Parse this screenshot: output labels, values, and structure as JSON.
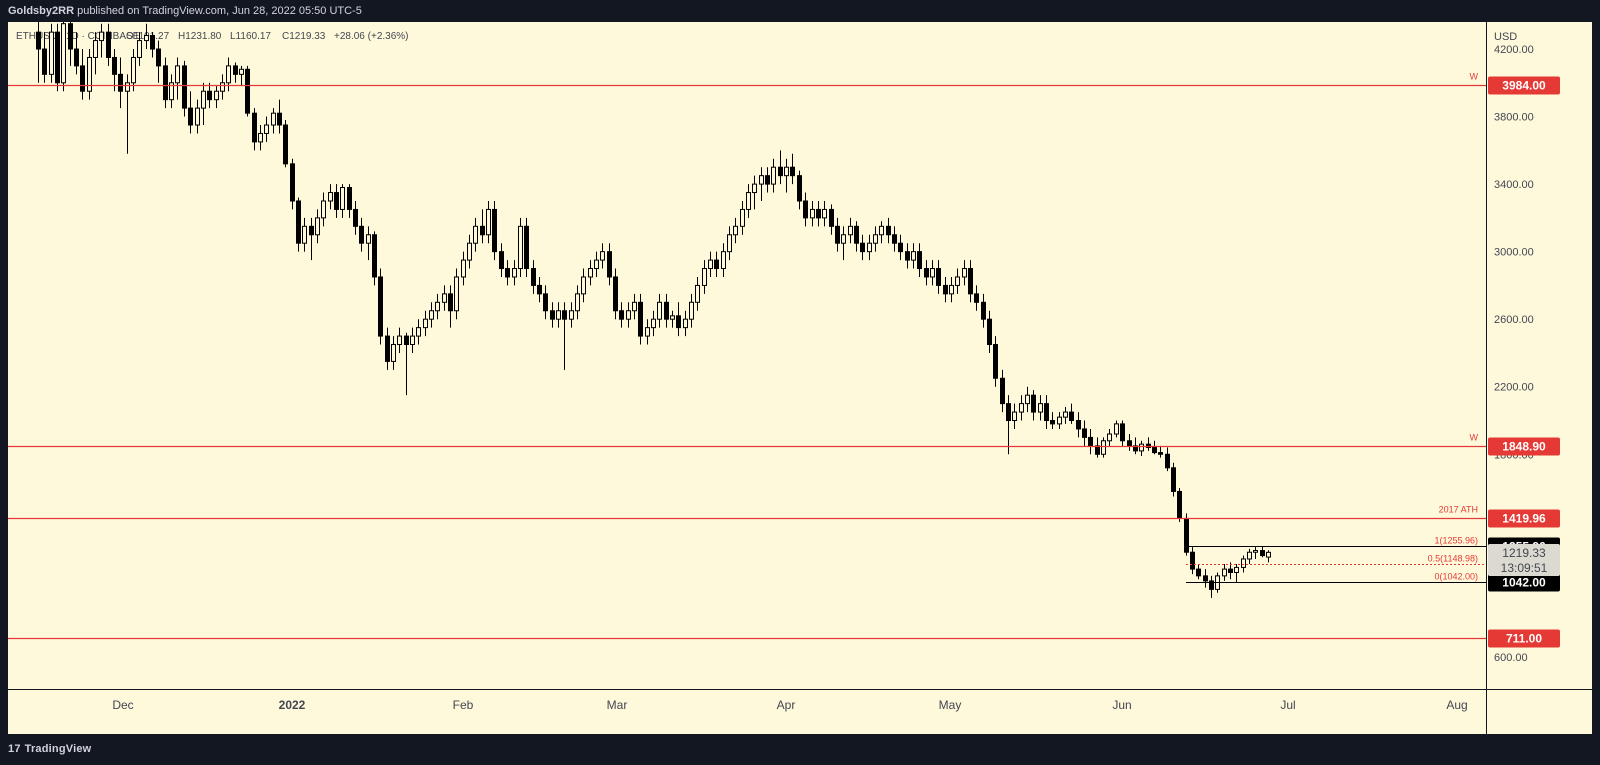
{
  "header": {
    "author": "Goldsby2RR",
    "published_text": "published on TradingView.com, Jun 28, 2022 05:50 UTC-5"
  },
  "footer": {
    "brand": "TradingView"
  },
  "legend": {
    "symbol": "ETHUSD",
    "exchange": "COINBASE",
    "open": "O1191.27",
    "high": "H1231.80",
    "low": "L1160.17",
    "close": "C1219.33",
    "change": "+28.06 (+2.36%)"
  },
  "colors": {
    "background": "#fff9dc",
    "frame": "#131722",
    "level_line": "#e53935",
    "candle": "#000000",
    "axis_text": "#434651"
  },
  "chart_data": {
    "type": "candlestick",
    "symbol": "ETHUSD",
    "currency": "USD",
    "ylim": [
      410,
      4360
    ],
    "x_ticks": [
      "Dec",
      "2022",
      "Feb",
      "Mar",
      "Apr",
      "May",
      "Jun",
      "Jul",
      "Aug"
    ],
    "y_ticks": [
      4200,
      3800,
      3400,
      3000,
      2600,
      2200,
      1800,
      600
    ],
    "horizontal_levels": [
      {
        "price": 3984.0,
        "label": "3984.00",
        "tag": "W"
      },
      {
        "price": 1848.9,
        "label": "1848.90",
        "tag": "W"
      },
      {
        "price": 1419.96,
        "label": "1419.96",
        "tag": "2017 ATH"
      },
      {
        "price": 711.0,
        "label": "711.00",
        "tag": ""
      }
    ],
    "fibonacci": [
      {
        "ratio": "1",
        "price": 1255.96,
        "label": "1(1255.96)",
        "badge": "1255.96"
      },
      {
        "ratio": "0.5",
        "price": 1148.98,
        "label": "0.5(1148.98)",
        "badge": ""
      },
      {
        "ratio": "0",
        "price": 1042.0,
        "label": "0(1042.00)",
        "badge": "1042.00"
      }
    ],
    "last_price": {
      "price": 1219.33,
      "label": "1219.33",
      "countdown": "13:09:51"
    },
    "candles": [
      [
        4300,
        4400,
        4000,
        4200
      ],
      [
        4200,
        4300,
        4000,
        4050
      ],
      [
        4050,
        4350,
        4000,
        4300
      ],
      [
        4300,
        4350,
        3950,
        4000
      ],
      [
        4000,
        4400,
        3950,
        4350
      ],
      [
        4350,
        4400,
        4100,
        4200
      ],
      [
        4200,
        4300,
        4050,
        4100
      ],
      [
        4100,
        4200,
        3900,
        3950
      ],
      [
        3950,
        4200,
        3900,
        4150
      ],
      [
        4150,
        4300,
        4050,
        4250
      ],
      [
        4250,
        4350,
        4150,
        4300
      ],
      [
        4300,
        4350,
        4100,
        4150
      ],
      [
        4150,
        4200,
        3950,
        4050
      ],
      [
        4050,
        4150,
        3850,
        3950
      ],
      [
        3950,
        4050,
        3580,
        4000
      ],
      [
        4000,
        4200,
        3950,
        4150
      ],
      [
        4150,
        4300,
        4100,
        4250
      ],
      [
        4250,
        4350,
        4200,
        4280
      ],
      [
        4280,
        4300,
        4150,
        4200
      ],
      [
        4200,
        4250,
        4000,
        4100
      ],
      [
        4100,
        4150,
        3850,
        3900
      ],
      [
        3900,
        4050,
        3850,
        4000
      ],
      [
        4000,
        4150,
        3900,
        4100
      ],
      [
        4100,
        4130,
        3800,
        3850
      ],
      [
        3850,
        3950,
        3700,
        3750
      ],
      [
        3750,
        3900,
        3700,
        3850
      ],
      [
        3850,
        4000,
        3750,
        3950
      ],
      [
        3950,
        4000,
        3850,
        3900
      ],
      [
        3900,
        3980,
        3850,
        3950
      ],
      [
        3950,
        4050,
        3900,
        4000
      ],
      [
        4000,
        4150,
        3950,
        4100
      ],
      [
        4100,
        4120,
        4000,
        4050
      ],
      [
        4050,
        4100,
        3980,
        4080
      ],
      [
        4080,
        4100,
        3800,
        3820
      ],
      [
        3820,
        3850,
        3600,
        3650
      ],
      [
        3650,
        3750,
        3600,
        3700
      ],
      [
        3700,
        3800,
        3650,
        3750
      ],
      [
        3750,
        3850,
        3700,
        3820
      ],
      [
        3820,
        3900,
        3700,
        3750
      ],
      [
        3750,
        3780,
        3500,
        3520
      ],
      [
        3520,
        3550,
        3250,
        3300
      ],
      [
        3300,
        3320,
        3000,
        3050
      ],
      [
        3050,
        3200,
        3000,
        3150
      ],
      [
        3150,
        3200,
        2950,
        3100
      ],
      [
        3100,
        3250,
        3050,
        3200
      ],
      [
        3200,
        3350,
        3150,
        3300
      ],
      [
        3300,
        3400,
        3250,
        3350
      ],
      [
        3350,
        3400,
        3200,
        3250
      ],
      [
        3250,
        3400,
        3200,
        3380
      ],
      [
        3380,
        3400,
        3200,
        3250
      ],
      [
        3250,
        3300,
        3100,
        3150
      ],
      [
        3150,
        3200,
        3000,
        3050
      ],
      [
        3050,
        3150,
        2950,
        3100
      ],
      [
        3100,
        3120,
        2800,
        2850
      ],
      [
        2850,
        2900,
        2450,
        2500
      ],
      [
        2500,
        2550,
        2300,
        2350
      ],
      [
        2350,
        2500,
        2300,
        2450
      ],
      [
        2450,
        2550,
        2400,
        2500
      ],
      [
        2500,
        2520,
        2150,
        2450
      ],
      [
        2450,
        2550,
        2400,
        2500
      ],
      [
        2500,
        2600,
        2450,
        2550
      ],
      [
        2550,
        2650,
        2500,
        2600
      ],
      [
        2600,
        2700,
        2550,
        2650
      ],
      [
        2650,
        2750,
        2600,
        2700
      ],
      [
        2700,
        2800,
        2650,
        2750
      ],
      [
        2750,
        2800,
        2550,
        2650
      ],
      [
        2650,
        2900,
        2600,
        2850
      ],
      [
        2850,
        3000,
        2800,
        2950
      ],
      [
        2950,
        3100,
        2900,
        3050
      ],
      [
        3050,
        3200,
        3000,
        3150
      ],
      [
        3150,
        3250,
        3050,
        3100
      ],
      [
        3100,
        3300,
        3050,
        3250
      ],
      [
        3250,
        3300,
        2950,
        3000
      ],
      [
        3000,
        3050,
        2850,
        2900
      ],
      [
        2900,
        2950,
        2800,
        2850
      ],
      [
        2850,
        2950,
        2800,
        2900
      ],
      [
        2900,
        3200,
        2850,
        3150
      ],
      [
        3150,
        3200,
        2850,
        2900
      ],
      [
        2900,
        2950,
        2750,
        2800
      ],
      [
        2800,
        2850,
        2700,
        2750
      ],
      [
        2750,
        2800,
        2600,
        2650
      ],
      [
        2650,
        2700,
        2550,
        2600
      ],
      [
        2600,
        2700,
        2550,
        2650
      ],
      [
        2650,
        2700,
        2300,
        2600
      ],
      [
        2600,
        2700,
        2550,
        2650
      ],
      [
        2650,
        2800,
        2600,
        2750
      ],
      [
        2750,
        2900,
        2700,
        2850
      ],
      [
        2850,
        2950,
        2800,
        2900
      ],
      [
        2900,
        3000,
        2850,
        2950
      ],
      [
        2950,
        3050,
        2900,
        3000
      ],
      [
        3000,
        3050,
        2800,
        2850
      ],
      [
        2850,
        2900,
        2600,
        2650
      ],
      [
        2650,
        2700,
        2550,
        2600
      ],
      [
        2600,
        2700,
        2550,
        2650
      ],
      [
        2650,
        2750,
        2600,
        2700
      ],
      [
        2700,
        2750,
        2450,
        2500
      ],
      [
        2500,
        2600,
        2450,
        2550
      ],
      [
        2550,
        2650,
        2500,
        2600
      ],
      [
        2600,
        2750,
        2550,
        2700
      ],
      [
        2700,
        2750,
        2550,
        2600
      ],
      [
        2600,
        2650,
        2550,
        2620
      ],
      [
        2620,
        2700,
        2500,
        2550
      ],
      [
        2550,
        2650,
        2500,
        2600
      ],
      [
        2600,
        2750,
        2550,
        2700
      ],
      [
        2700,
        2850,
        2650,
        2800
      ],
      [
        2800,
        2950,
        2750,
        2900
      ],
      [
        2900,
        3000,
        2850,
        2950
      ],
      [
        2950,
        3000,
        2850,
        2900
      ],
      [
        2900,
        3050,
        2850,
        3000
      ],
      [
        3000,
        3150,
        2950,
        3100
      ],
      [
        3100,
        3200,
        3050,
        3150
      ],
      [
        3150,
        3300,
        3100,
        3250
      ],
      [
        3250,
        3400,
        3200,
        3350
      ],
      [
        3350,
        3450,
        3250,
        3400
      ],
      [
        3400,
        3500,
        3300,
        3450
      ],
      [
        3450,
        3500,
        3350,
        3400
      ],
      [
        3400,
        3550,
        3350,
        3500
      ],
      [
        3500,
        3600,
        3400,
        3450
      ],
      [
        3450,
        3550,
        3350,
        3500
      ],
      [
        3500,
        3580,
        3400,
        3450
      ],
      [
        3450,
        3480,
        3250,
        3300
      ],
      [
        3300,
        3350,
        3150,
        3200
      ],
      [
        3200,
        3300,
        3150,
        3250
      ],
      [
        3250,
        3300,
        3150,
        3200
      ],
      [
        3200,
        3300,
        3150,
        3250
      ],
      [
        3250,
        3280,
        3100,
        3150
      ],
      [
        3150,
        3200,
        3000,
        3050
      ],
      [
        3050,
        3150,
        2950,
        3100
      ],
      [
        3100,
        3200,
        3050,
        3150
      ],
      [
        3150,
        3180,
        3000,
        3050
      ],
      [
        3050,
        3100,
        2950,
        3000
      ],
      [
        3000,
        3100,
        2950,
        3050
      ],
      [
        3050,
        3150,
        3000,
        3100
      ],
      [
        3100,
        3180,
        3050,
        3150
      ],
      [
        3150,
        3200,
        3050,
        3100
      ],
      [
        3100,
        3150,
        3000,
        3050
      ],
      [
        3050,
        3100,
        2950,
        3000
      ],
      [
        3000,
        3050,
        2900,
        2950
      ],
      [
        2950,
        3050,
        2900,
        3000
      ],
      [
        3000,
        3050,
        2850,
        2900
      ],
      [
        2900,
        2950,
        2800,
        2850
      ],
      [
        2850,
        2950,
        2800,
        2900
      ],
      [
        2900,
        2950,
        2750,
        2800
      ],
      [
        2800,
        2850,
        2700,
        2750
      ],
      [
        2750,
        2850,
        2700,
        2800
      ],
      [
        2800,
        2900,
        2750,
        2850
      ],
      [
        2850,
        2950,
        2800,
        2900
      ],
      [
        2900,
        2950,
        2700,
        2750
      ],
      [
        2750,
        2800,
        2650,
        2700
      ],
      [
        2700,
        2750,
        2550,
        2600
      ],
      [
        2600,
        2650,
        2400,
        2450
      ],
      [
        2450,
        2500,
        2200,
        2250
      ],
      [
        2250,
        2300,
        2050,
        2100
      ],
      [
        2100,
        2150,
        1800,
        2000
      ],
      [
        2000,
        2100,
        1950,
        2050
      ],
      [
        2050,
        2150,
        2000,
        2100
      ],
      [
        2100,
        2200,
        2050,
        2150
      ],
      [
        2150,
        2180,
        2000,
        2050
      ],
      [
        2050,
        2150,
        2000,
        2100
      ],
      [
        2100,
        2150,
        1950,
        2000
      ],
      [
        2000,
        2050,
        1950,
        1980
      ],
      [
        1980,
        2050,
        1950,
        2020
      ],
      [
        2020,
        2080,
        1980,
        2050
      ],
      [
        2050,
        2100,
        1980,
        2000
      ],
      [
        2000,
        2050,
        1900,
        1950
      ],
      [
        1950,
        2000,
        1850,
        1900
      ],
      [
        1900,
        1950,
        1800,
        1850
      ],
      [
        1850,
        1900,
        1780,
        1800
      ],
      [
        1800,
        1900,
        1780,
        1880
      ],
      [
        1880,
        1950,
        1850,
        1920
      ],
      [
        1920,
        2000,
        1900,
        1980
      ],
      [
        1980,
        2000,
        1850,
        1880
      ],
      [
        1880,
        1920,
        1820,
        1850
      ],
      [
        1850,
        1900,
        1800,
        1820
      ],
      [
        1820,
        1880,
        1790,
        1860
      ],
      [
        1860,
        1900,
        1820,
        1840
      ],
      [
        1840,
        1880,
        1800,
        1810
      ],
      [
        1810,
        1850,
        1780,
        1800
      ],
      [
        1800,
        1840,
        1700,
        1720
      ],
      [
        1720,
        1750,
        1550,
        1580
      ],
      [
        1580,
        1600,
        1400,
        1420
      ],
      [
        1420,
        1450,
        1200,
        1220
      ],
      [
        1220,
        1250,
        1090,
        1120
      ],
      [
        1120,
        1150,
        1060,
        1080
      ],
      [
        1080,
        1120,
        1010,
        1050
      ],
      [
        1050,
        1080,
        950,
        1000
      ],
      [
        1000,
        1100,
        980,
        1080
      ],
      [
        1080,
        1150,
        1050,
        1120
      ],
      [
        1120,
        1160,
        1060,
        1100
      ],
      [
        1100,
        1150,
        1040,
        1130
      ],
      [
        1130,
        1200,
        1100,
        1180
      ],
      [
        1180,
        1240,
        1150,
        1220
      ],
      [
        1220,
        1250,
        1180,
        1230
      ],
      [
        1230,
        1256,
        1190,
        1200
      ],
      [
        1191.27,
        1231.8,
        1160.17,
        1219.33
      ]
    ]
  }
}
